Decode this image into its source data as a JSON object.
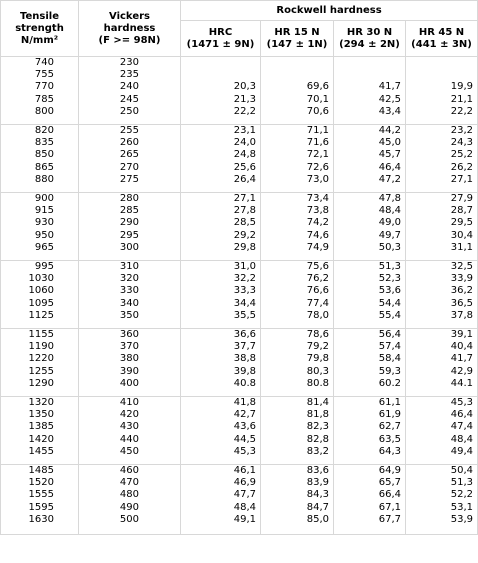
{
  "header": {
    "tensile_strength": [
      "Tensile",
      "strength",
      "N/mm²"
    ],
    "vickers": [
      "Vickers",
      "hardness",
      "(F >= 98N)"
    ],
    "rockwell": "Rockwell hardness",
    "hrc": [
      "HRC",
      "(1471 ± 9N)"
    ],
    "hr15n": [
      "HR 15 N",
      "(147 ± 1N)"
    ],
    "hr30n": [
      "HR 30 N",
      "(294 ± 2N)"
    ],
    "hr45n": [
      "HR 45 N",
      "(441 ± 3N)"
    ]
  },
  "groups": [
    {
      "rows": [
        [
          "740",
          "230",
          "",
          "",
          "",
          ""
        ],
        [
          "755",
          "235",
          "",
          "",
          "",
          ""
        ],
        [
          "770",
          "240",
          "20,3",
          "69,6",
          "41,7",
          "19,9"
        ],
        [
          "785",
          "245",
          "21,3",
          "70,1",
          "42,5",
          "21,1"
        ],
        [
          "800",
          "250",
          "22,2",
          "70,6",
          "43,4",
          "22,2"
        ]
      ]
    },
    {
      "rows": [
        [
          "820",
          "255",
          "23,1",
          "71,1",
          "44,2",
          "23,2"
        ],
        [
          "835",
          "260",
          "24,0",
          "71,6",
          "45,0",
          "24,3"
        ],
        [
          "850",
          "265",
          "24,8",
          "72,1",
          "45,7",
          "25,2"
        ],
        [
          "865",
          "270",
          "25,6",
          "72,6",
          "46,4",
          "26,2"
        ],
        [
          "880",
          "275",
          "26,4",
          "73,0",
          "47,2",
          "27,1"
        ]
      ]
    },
    {
      "rows": [
        [
          "900",
          "280",
          "27,1",
          "73,4",
          "47,8",
          "27,9"
        ],
        [
          "915",
          "285",
          "27,8",
          "73,8",
          "48,4",
          "28,7"
        ],
        [
          "930",
          "290",
          "28,5",
          "74,2",
          "49,0",
          "29,5"
        ],
        [
          "950",
          "295",
          "29,2",
          "74,6",
          "49,7",
          "30,4"
        ],
        [
          "965",
          "300",
          "29,8",
          "74,9",
          "50,3",
          "31,1"
        ]
      ]
    },
    {
      "rows": [
        [
          "995",
          "310",
          "31,0",
          "75,6",
          "51,3",
          "32,5"
        ],
        [
          "1030",
          "320",
          "32,2",
          "76,2",
          "52,3",
          "33,9"
        ],
        [
          "1060",
          "330",
          "33,3",
          "76,6",
          "53,6",
          "36,2"
        ],
        [
          "1095",
          "340",
          "34,4",
          "77,4",
          "54,4",
          "36,5"
        ],
        [
          "1125",
          "350",
          "35,5",
          "78,0",
          "55,4",
          "37,8"
        ]
      ]
    },
    {
      "rows": [
        [
          "1155",
          "360",
          "36,6",
          "78,6",
          "56,4",
          "39,1"
        ],
        [
          "1190",
          "370",
          "37,7",
          "79,2",
          "57,4",
          "40,4"
        ],
        [
          "1220",
          "380",
          "38,8",
          "79,8",
          "58,4",
          "41,7"
        ],
        [
          "1255",
          "390",
          "39,8",
          "80,3",
          "59,3",
          "42,9"
        ],
        [
          "1290",
          "400",
          "40.8",
          "80.8",
          "60.2",
          "44.1"
        ]
      ]
    },
    {
      "rows": [
        [
          "1320",
          "410",
          "41,8",
          "81,4",
          "61,1",
          "45,3"
        ],
        [
          "1350",
          "420",
          "42,7",
          "81,8",
          "61,9",
          "46,4"
        ],
        [
          "1385",
          "430",
          "43,6",
          "82,3",
          "62,7",
          "47,4"
        ],
        [
          "1420",
          "440",
          "44,5",
          "82,8",
          "63,5",
          "48,4"
        ],
        [
          "1455",
          "450",
          "45,3",
          "83,2",
          "64,3",
          "49,4"
        ]
      ]
    },
    {
      "rows": [
        [
          "1485",
          "460",
          "46,1",
          "83,6",
          "64,9",
          "50,4"
        ],
        [
          "1520",
          "470",
          "46,9",
          "83,9",
          "65,7",
          "51,3"
        ],
        [
          "1555",
          "480",
          "47,7",
          "84,3",
          "66,4",
          "52,2"
        ],
        [
          "1595",
          "490",
          "48,4",
          "84,7",
          "67,1",
          "53,1"
        ],
        [
          "1630",
          "500",
          "49,1",
          "85,0",
          "67,7",
          "53,9"
        ]
      ]
    }
  ]
}
